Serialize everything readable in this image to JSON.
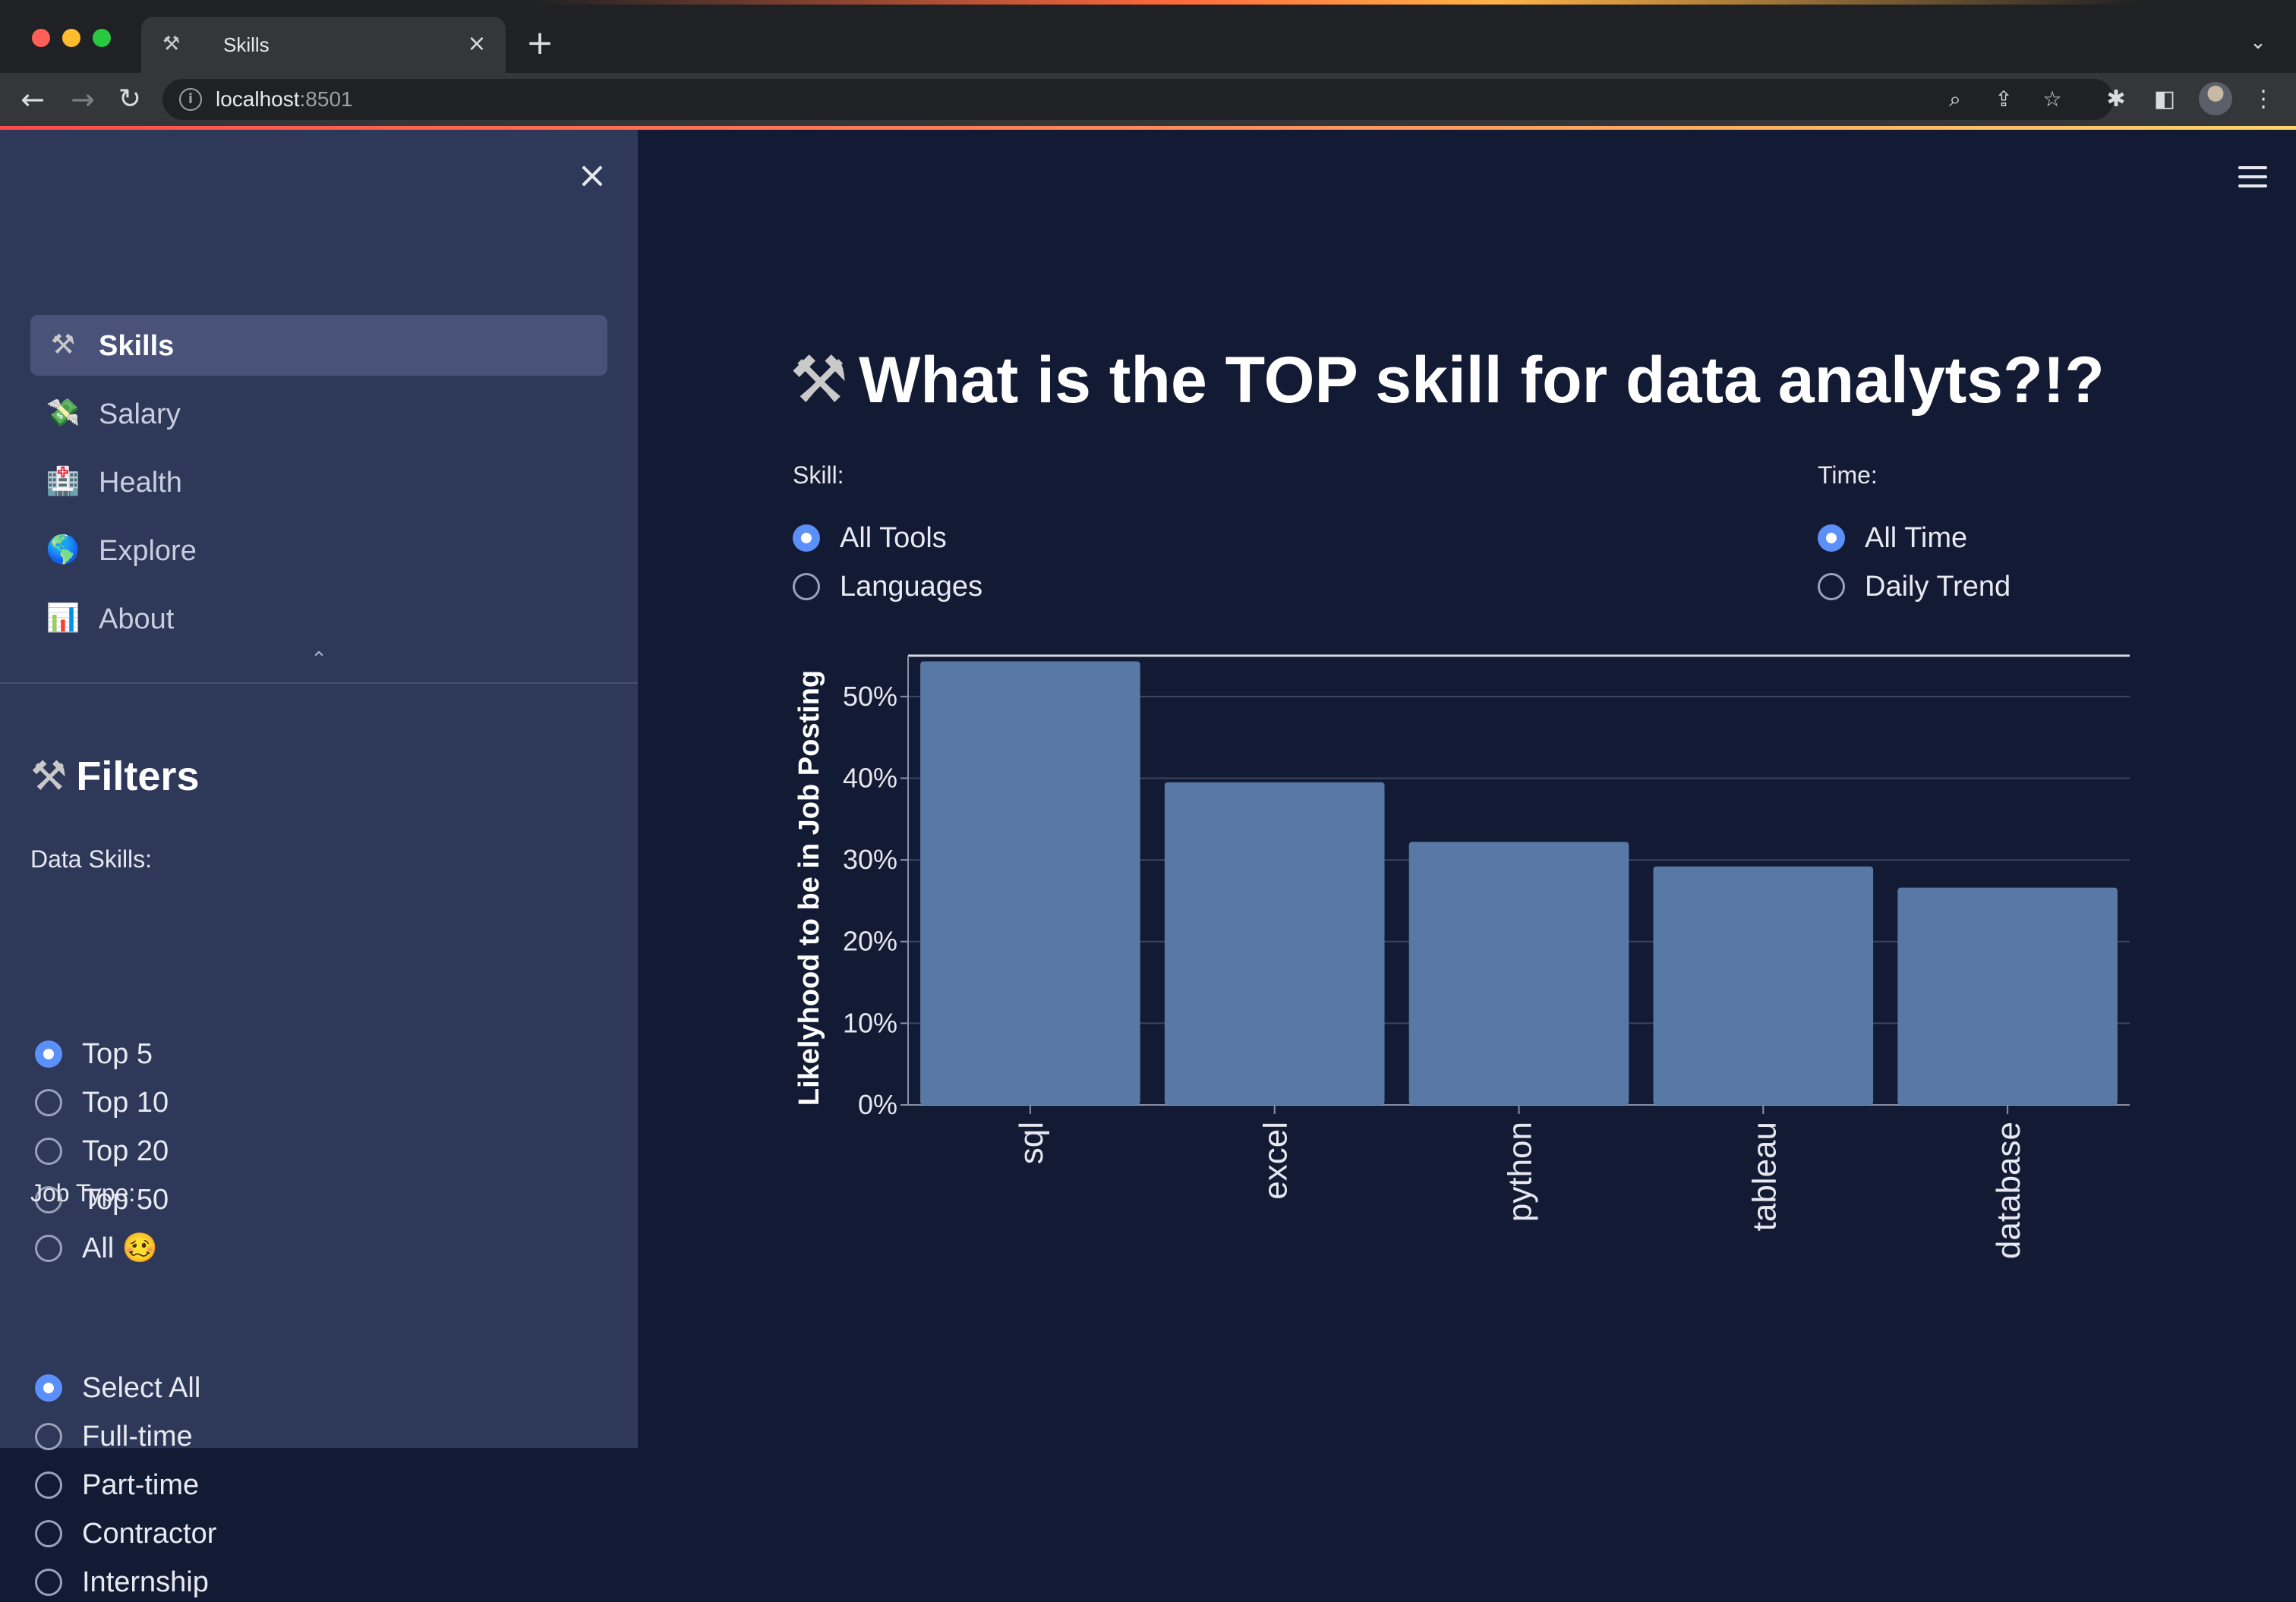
{
  "browser": {
    "tab_title": "Skills",
    "tab_favicon": "hammer-and-pick-icon",
    "url_host": "localhost",
    "url_port": ":8501"
  },
  "sidebar": {
    "nav": [
      {
        "label": "Skills",
        "icon": "hammer-and-pick-icon",
        "glyph": "⚒",
        "active": true
      },
      {
        "label": "Salary",
        "icon": "money-with-wings-icon",
        "glyph": "💸",
        "active": false
      },
      {
        "label": "Health",
        "icon": "hospital-icon",
        "glyph": "🏥",
        "active": false
      },
      {
        "label": "Explore",
        "icon": "globe-icon",
        "glyph": "🌎",
        "active": false
      },
      {
        "label": "About",
        "icon": "bar-chart-icon",
        "glyph": "📊",
        "active": false
      }
    ],
    "filters_title": "Filters",
    "data_skills": {
      "label": "Data Skills:",
      "options": [
        "Top 5",
        "Top 10",
        "Top 20",
        "Top 50",
        "All 🥴"
      ],
      "selected": "Top 5"
    },
    "job_type": {
      "label": "Job Type:",
      "options": [
        "Select All",
        "Full-time",
        "Part-time",
        "Contractor",
        "Internship"
      ],
      "selected": "Select All"
    }
  },
  "main": {
    "title": "What is the TOP skill for data analyts?!?",
    "skill": {
      "label": "Skill:",
      "options": [
        "All Tools",
        "Languages"
      ],
      "selected": "All Tools"
    },
    "time": {
      "label": "Time:",
      "options": [
        "All Time",
        "Daily Trend"
      ],
      "selected": "All Time"
    }
  },
  "chart_data": {
    "type": "bar",
    "categories": [
      "sql",
      "excel",
      "python",
      "tableau",
      "database"
    ],
    "values": [
      54.3,
      39.5,
      32.2,
      29.2,
      26.6
    ],
    "ylabel": "Likelyhood to be in Job Posting",
    "ylim": [
      0,
      55
    ],
    "yticks": [
      0,
      10,
      20,
      30,
      40,
      50
    ],
    "ytick_labels": [
      "0%",
      "10%",
      "20%",
      "30%",
      "40%",
      "50%"
    ],
    "grid": true,
    "bar_color": "#5878a6"
  }
}
